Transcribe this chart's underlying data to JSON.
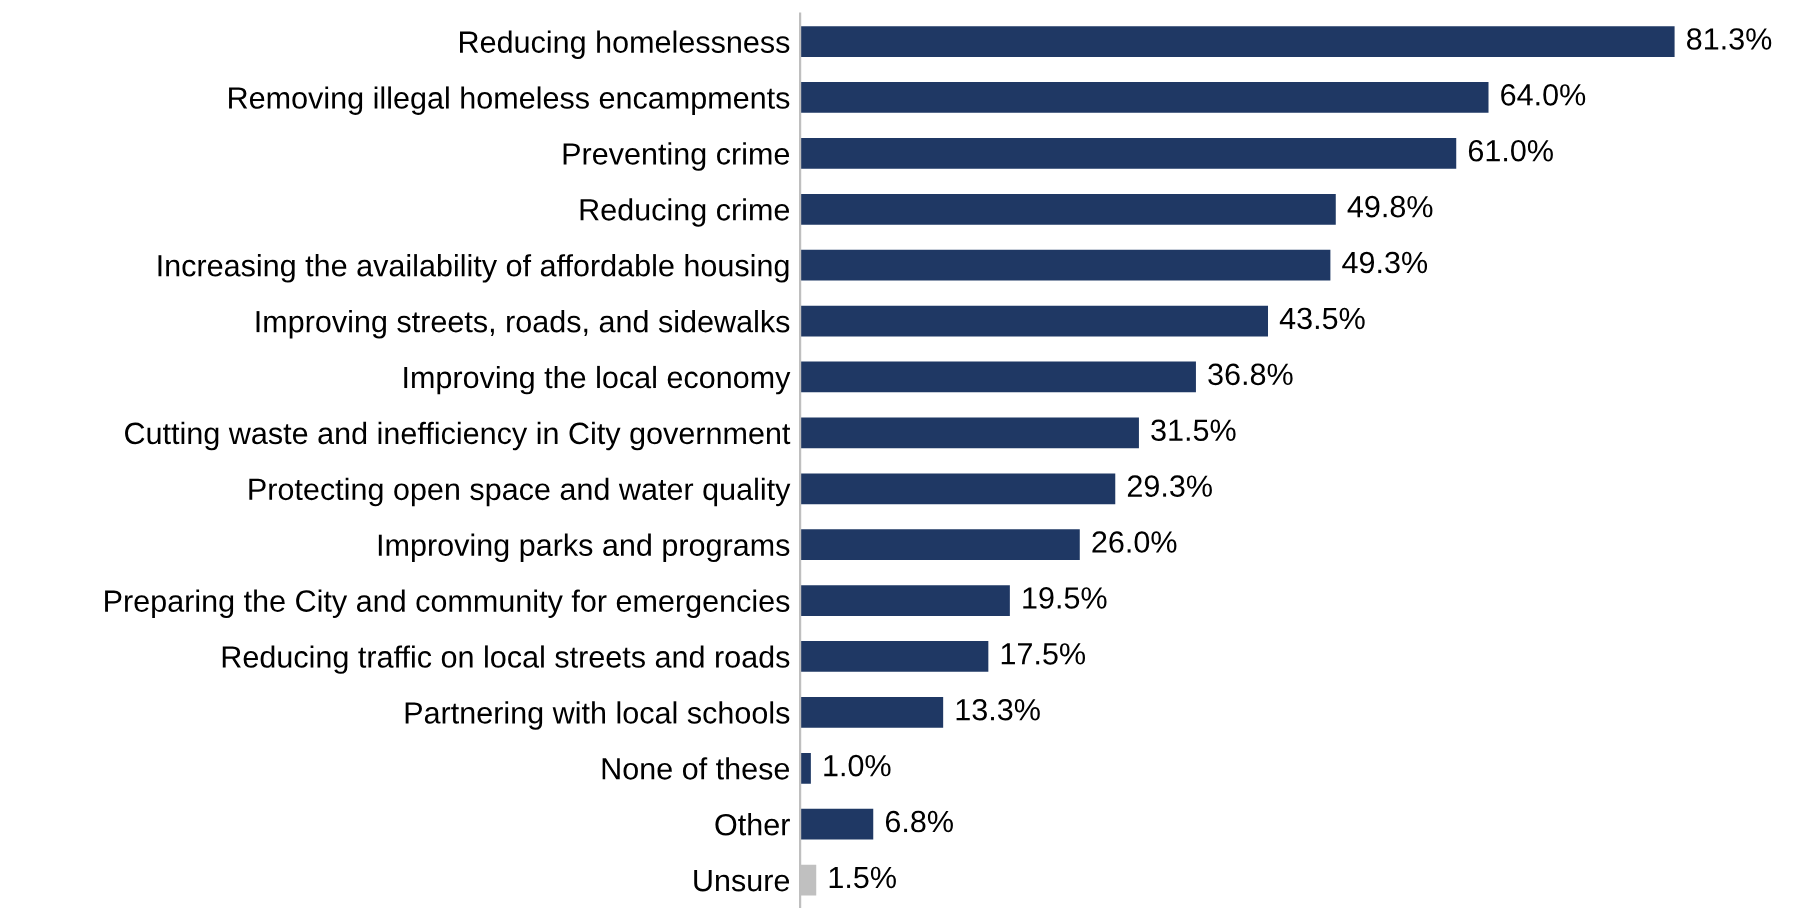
{
  "chart_data": {
    "type": "bar",
    "orientation": "horizontal",
    "grid": false,
    "legend": false,
    "tick_labels": "y",
    "categories": [
      "Reducing homelessness",
      "Removing illegal homeless encampments",
      "Preventing crime",
      "Reducing crime",
      "Increasing the availability of affordable housing",
      "Improving streets, roads, and sidewalks",
      "Improving the local economy",
      "Cutting waste and inefficiency in City government",
      "Protecting open space and water quality",
      "Improving parks and programs",
      "Preparing the City and community for emergencies",
      "Reducing traffic on local streets and roads",
      "Partnering with local schools",
      "None of these",
      "Other",
      "Unsure"
    ],
    "values": [
      81.3,
      64.0,
      61.0,
      49.8,
      49.3,
      43.5,
      36.8,
      31.5,
      29.3,
      26.0,
      19.5,
      17.5,
      13.3,
      1.0,
      6.8,
      1.5
    ],
    "value_labels": [
      "81.3%",
      "64.0%",
      "61.0%",
      "49.8%",
      "49.3%",
      "43.5%",
      "36.8%",
      "31.5%",
      "29.3%",
      "26.0%",
      "19.5%",
      "17.5%",
      "13.3%",
      "1.0%",
      "6.8%",
      "1.5%"
    ],
    "colors": [
      "#1f3864",
      "#1f3864",
      "#1f3864",
      "#1f3864",
      "#1f3864",
      "#1f3864",
      "#1f3864",
      "#1f3864",
      "#1f3864",
      "#1f3864",
      "#1f3864",
      "#1f3864",
      "#1f3864",
      "#1f3864",
      "#1f3864",
      "#c0c0c0"
    ]
  }
}
